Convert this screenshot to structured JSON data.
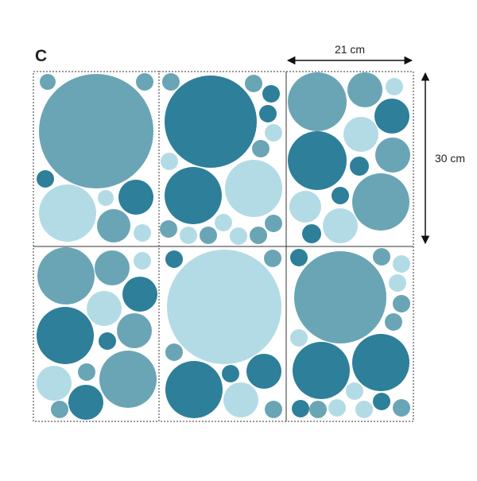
{
  "label": "C",
  "width_label": "21 cm",
  "height_label": "30 cm"
}
